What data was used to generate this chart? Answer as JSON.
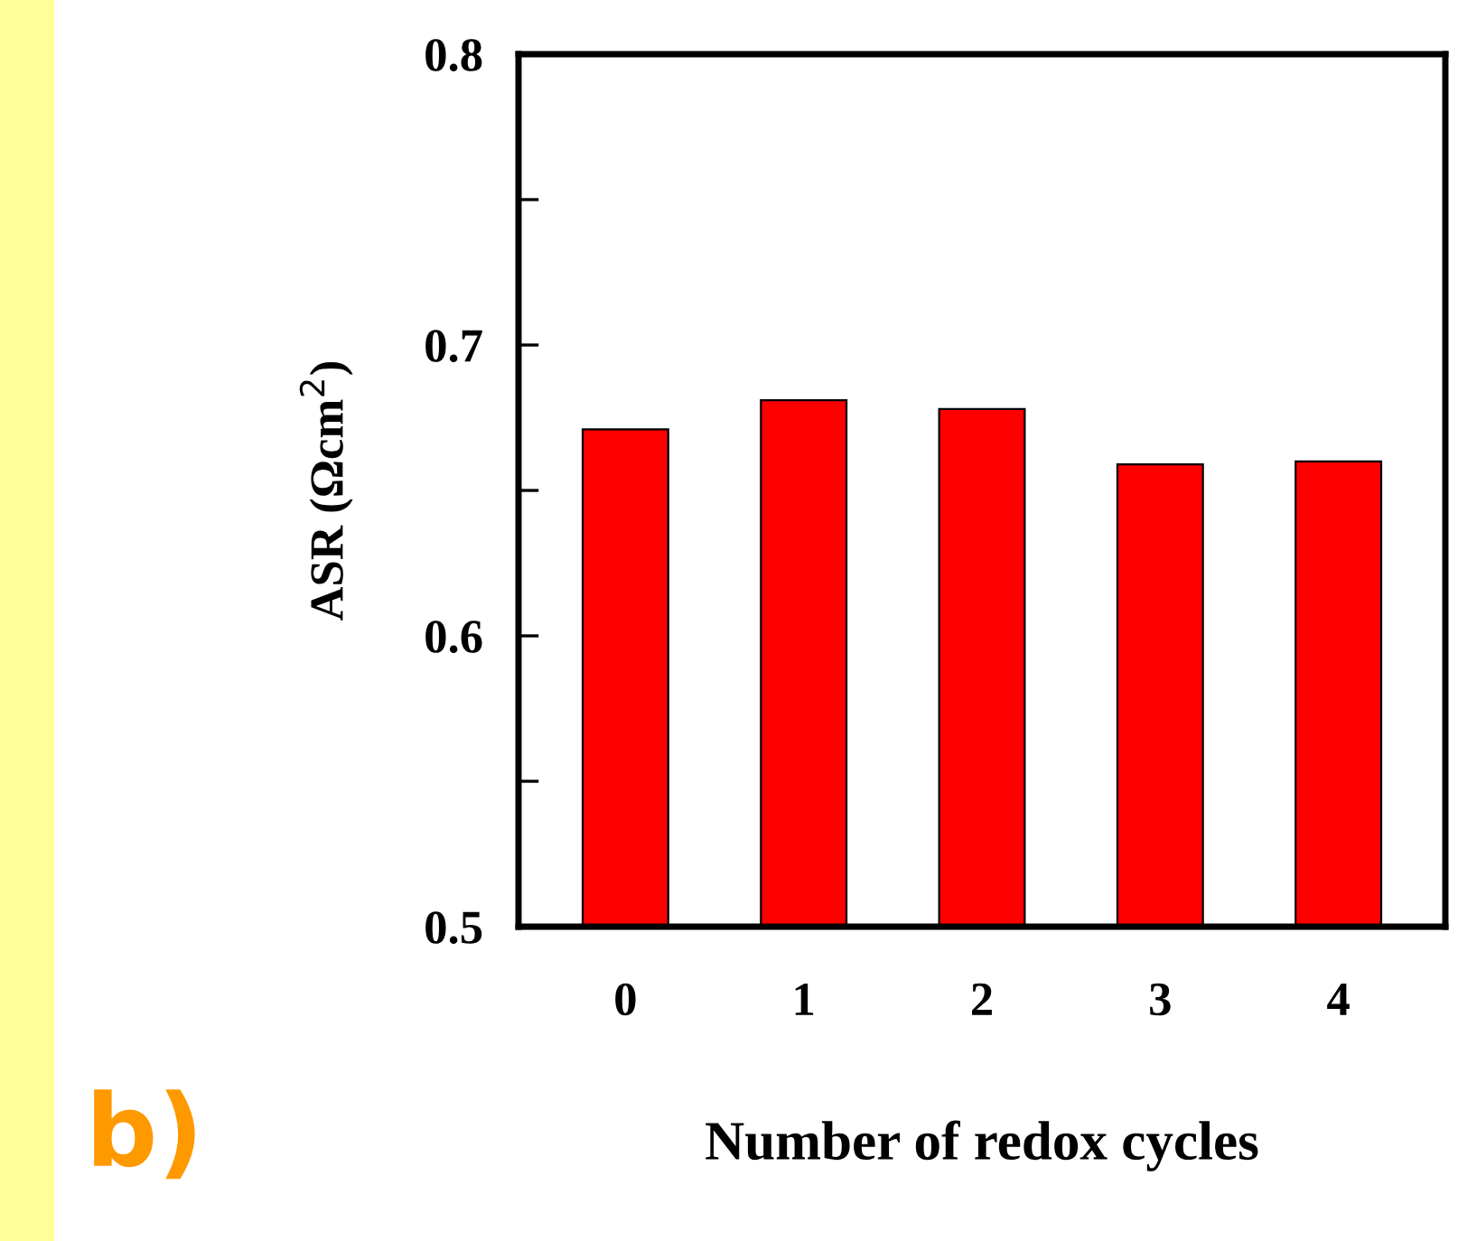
{
  "chart_data": {
    "type": "bar",
    "xlabel": "Number of redox cycles",
    "ylabel": "ASR (Ωcm$^{2}$)",
    "categories": [
      "0",
      "1",
      "2",
      "3",
      "4"
    ],
    "values": [
      0.671,
      0.681,
      0.678,
      0.659,
      0.66
    ],
    "color": "#ff0000",
    "ylim": [
      0.5,
      0.8
    ],
    "yticks": [
      0.5,
      {
        "value": 0.55,
        "label": null
      },
      0.6,
      {
        "value": 0.65,
        "label": null
      },
      0.7,
      {
        "value": 0.75,
        "label": null
      },
      0.8
    ],
    "annotations": [
      "b)"
    ],
    "grid": false,
    "legend": false
  }
}
